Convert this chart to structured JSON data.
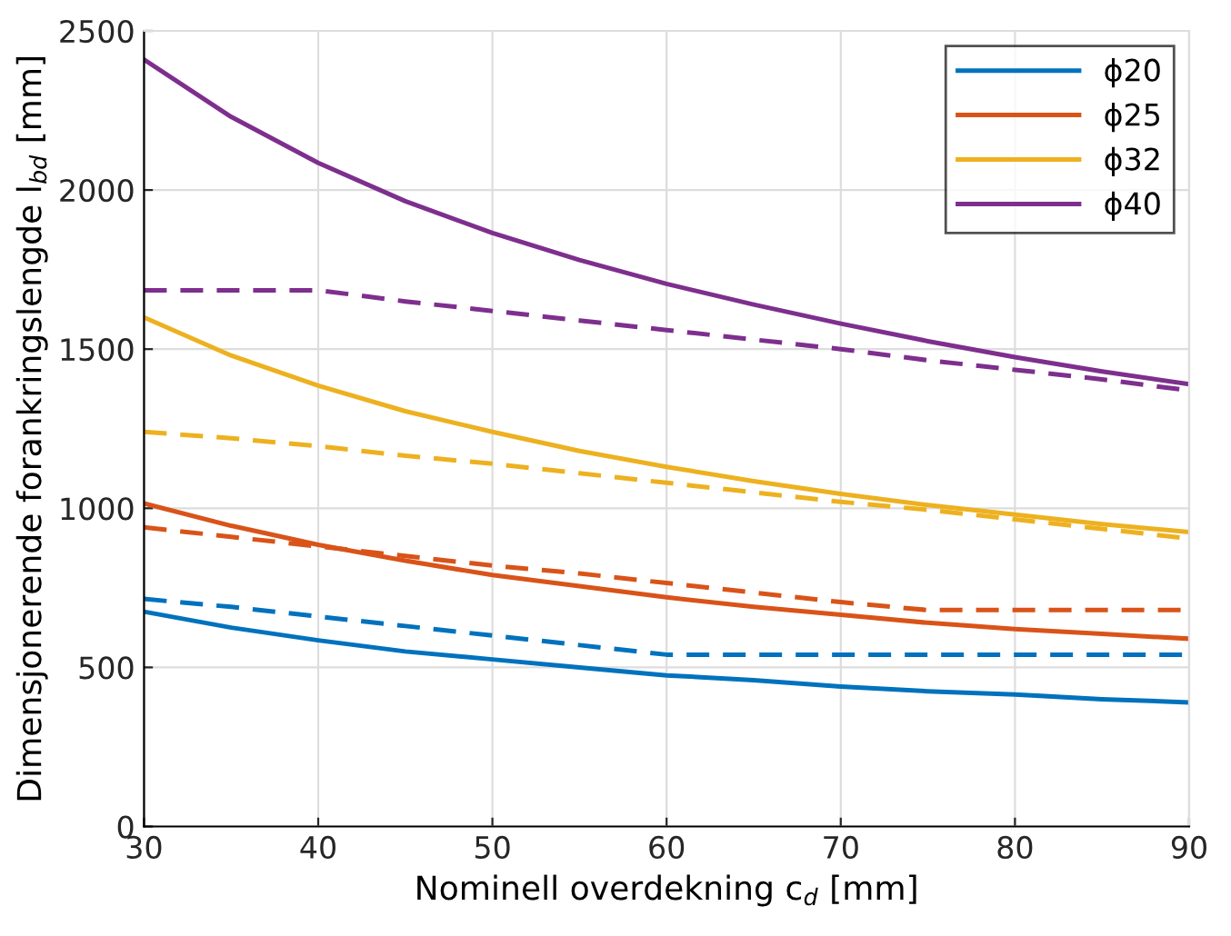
{
  "chart_data": {
    "type": "line",
    "xlabel": "Nominell overdekning c$_{d}$ [mm]",
    "ylabel": "Dimensjonerende forankringslengde l$_{bd}$ [mm]",
    "x": [
      30,
      35,
      40,
      45,
      50,
      55,
      60,
      65,
      70,
      75,
      80,
      85,
      90
    ],
    "series": [
      {
        "name": "ϕ20",
        "color": "#0072bd",
        "line_style": "solid",
        "values": [
          675,
          625,
          585,
          550,
          525,
          500,
          475,
          460,
          440,
          425,
          415,
          400,
          390
        ]
      },
      {
        "name": "ϕ25",
        "color": "#d95319",
        "line_style": "solid",
        "values": [
          1015,
          945,
          885,
          835,
          790,
          755,
          720,
          690,
          665,
          640,
          620,
          605,
          590
        ]
      },
      {
        "name": "ϕ32",
        "color": "#edb120",
        "line_style": "solid",
        "values": [
          1600,
          1480,
          1385,
          1305,
          1240,
          1180,
          1130,
          1085,
          1045,
          1010,
          980,
          950,
          925
        ]
      },
      {
        "name": "ϕ40",
        "color": "#7e2f8e",
        "line_style": "solid",
        "values": [
          2410,
          2230,
          2085,
          1965,
          1865,
          1780,
          1705,
          1640,
          1580,
          1525,
          1475,
          1430,
          1390
        ]
      },
      {
        "color": "#0072bd",
        "line_style": "dashed",
        "values": [
          715,
          690,
          660,
          630,
          600,
          570,
          540,
          540,
          540,
          540,
          540,
          540,
          540
        ]
      },
      {
        "color": "#d95319",
        "line_style": "dashed",
        "values": [
          940,
          910,
          880,
          850,
          820,
          795,
          765,
          735,
          705,
          680,
          680,
          680,
          680
        ]
      },
      {
        "color": "#edb120",
        "line_style": "dashed",
        "values": [
          1240,
          1220,
          1195,
          1165,
          1140,
          1110,
          1080,
          1050,
          1020,
          995,
          965,
          935,
          905
        ]
      },
      {
        "color": "#7e2f8e",
        "line_style": "dashed",
        "values": [
          1685,
          1685,
          1685,
          1650,
          1620,
          1590,
          1560,
          1530,
          1500,
          1465,
          1435,
          1405,
          1370
        ]
      }
    ],
    "xlim": [
      30,
      90
    ],
    "xticks": [
      30,
      40,
      50,
      60,
      70,
      80,
      90
    ],
    "ylim": [
      0,
      2500
    ],
    "yticks": [
      0,
      500,
      1000,
      1500,
      2000,
      2500
    ],
    "grid": true,
    "legend": "top right"
  }
}
